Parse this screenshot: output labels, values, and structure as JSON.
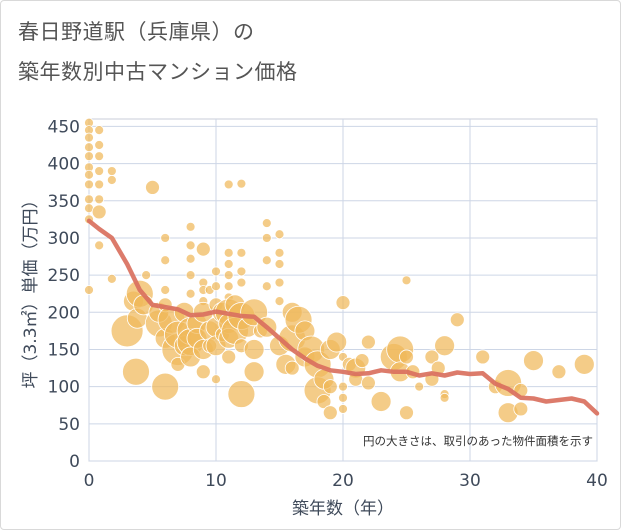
{
  "header": {
    "title_line1": "春日野道駅（兵庫県）の",
    "title_line2": "築年数別中古マンション価格"
  },
  "chart_data": {
    "type": "scatter",
    "xlabel": "築年数（年）",
    "ylabel": "坪（3.3㎡）単価（万円）",
    "xlim": [
      0,
      40
    ],
    "ylim": [
      0,
      460
    ],
    "xticks": [
      0,
      10,
      20,
      30,
      40
    ],
    "yticks": [
      0,
      50,
      100,
      150,
      200,
      250,
      300,
      350,
      400,
      450
    ],
    "grid": true,
    "note": "円の大きさは、取引のあった物件面積を示す",
    "colors": {
      "bubble": "#f0b95a",
      "trend": "#d9705e",
      "grid": "#cdd6e6"
    },
    "bubbles": [
      {
        "x": 0,
        "y": 455,
        "s": 1
      },
      {
        "x": 0,
        "y": 445,
        "s": 1
      },
      {
        "x": 0,
        "y": 435,
        "s": 1
      },
      {
        "x": 0,
        "y": 422,
        "s": 1
      },
      {
        "x": 0,
        "y": 410,
        "s": 1
      },
      {
        "x": 0,
        "y": 395,
        "s": 1
      },
      {
        "x": 0,
        "y": 385,
        "s": 1
      },
      {
        "x": 0,
        "y": 372,
        "s": 1
      },
      {
        "x": 0,
        "y": 352,
        "s": 1
      },
      {
        "x": 0,
        "y": 340,
        "s": 1
      },
      {
        "x": 0,
        "y": 325,
        "s": 1
      },
      {
        "x": 0,
        "y": 230,
        "s": 1
      },
      {
        "x": 0.8,
        "y": 445,
        "s": 1
      },
      {
        "x": 0.8,
        "y": 425,
        "s": 1
      },
      {
        "x": 0.8,
        "y": 410,
        "s": 1
      },
      {
        "x": 0.8,
        "y": 390,
        "s": 1
      },
      {
        "x": 0.8,
        "y": 372,
        "s": 1
      },
      {
        "x": 0.8,
        "y": 352,
        "s": 1
      },
      {
        "x": 0.8,
        "y": 335,
        "s": 2
      },
      {
        "x": 0.8,
        "y": 290,
        "s": 1
      },
      {
        "x": 1.8,
        "y": 390,
        "s": 1
      },
      {
        "x": 1.8,
        "y": 378,
        "s": 1
      },
      {
        "x": 1.8,
        "y": 245,
        "s": 1
      },
      {
        "x": 3,
        "y": 175,
        "s": 5
      },
      {
        "x": 3.5,
        "y": 215,
        "s": 3
      },
      {
        "x": 3.7,
        "y": 120,
        "s": 4
      },
      {
        "x": 3.8,
        "y": 192,
        "s": 3
      },
      {
        "x": 4,
        "y": 225,
        "s": 4
      },
      {
        "x": 4.3,
        "y": 210,
        "s": 3
      },
      {
        "x": 4.5,
        "y": 250,
        "s": 1
      },
      {
        "x": 5,
        "y": 368,
        "s": 2
      },
      {
        "x": 5.5,
        "y": 185,
        "s": 4
      },
      {
        "x": 5.5,
        "y": 200,
        "s": 3
      },
      {
        "x": 6,
        "y": 300,
        "s": 1
      },
      {
        "x": 6,
        "y": 270,
        "s": 1
      },
      {
        "x": 6,
        "y": 230,
        "s": 1
      },
      {
        "x": 6,
        "y": 210,
        "s": 2
      },
      {
        "x": 6,
        "y": 165,
        "s": 3
      },
      {
        "x": 6,
        "y": 100,
        "s": 4
      },
      {
        "x": 6.5,
        "y": 190,
        "s": 4
      },
      {
        "x": 7,
        "y": 150,
        "s": 5
      },
      {
        "x": 7,
        "y": 170,
        "s": 4
      },
      {
        "x": 7,
        "y": 130,
        "s": 2
      },
      {
        "x": 7.5,
        "y": 200,
        "s": 3
      },
      {
        "x": 7.5,
        "y": 155,
        "s": 3
      },
      {
        "x": 8,
        "y": 315,
        "s": 1
      },
      {
        "x": 8,
        "y": 290,
        "s": 1
      },
      {
        "x": 8,
        "y": 272,
        "s": 1
      },
      {
        "x": 8,
        "y": 250,
        "s": 1
      },
      {
        "x": 8,
        "y": 225,
        "s": 1
      },
      {
        "x": 8,
        "y": 175,
        "s": 4
      },
      {
        "x": 8,
        "y": 160,
        "s": 4
      },
      {
        "x": 8,
        "y": 140,
        "s": 3
      },
      {
        "x": 8.5,
        "y": 185,
        "s": 3
      },
      {
        "x": 8.5,
        "y": 165,
        "s": 3
      },
      {
        "x": 9,
        "y": 285,
        "s": 2
      },
      {
        "x": 9,
        "y": 240,
        "s": 1
      },
      {
        "x": 9,
        "y": 230,
        "s": 1
      },
      {
        "x": 9,
        "y": 215,
        "s": 1
      },
      {
        "x": 9,
        "y": 200,
        "s": 3
      },
      {
        "x": 9,
        "y": 150,
        "s": 3
      },
      {
        "x": 9,
        "y": 120,
        "s": 2
      },
      {
        "x": 9.5,
        "y": 230,
        "s": 1
      },
      {
        "x": 9.5,
        "y": 175,
        "s": 3
      },
      {
        "x": 9.5,
        "y": 155,
        "s": 2
      },
      {
        "x": 10,
        "y": 255,
        "s": 1
      },
      {
        "x": 10,
        "y": 235,
        "s": 1
      },
      {
        "x": 10,
        "y": 210,
        "s": 2
      },
      {
        "x": 10,
        "y": 180,
        "s": 3
      },
      {
        "x": 10,
        "y": 155,
        "s": 3
      },
      {
        "x": 10,
        "y": 110,
        "s": 1
      },
      {
        "x": 10.5,
        "y": 200,
        "s": 3
      },
      {
        "x": 10.5,
        "y": 170,
        "s": 2
      },
      {
        "x": 11,
        "y": 372,
        "s": 1
      },
      {
        "x": 11,
        "y": 280,
        "s": 1
      },
      {
        "x": 11,
        "y": 265,
        "s": 1
      },
      {
        "x": 11,
        "y": 250,
        "s": 1
      },
      {
        "x": 11,
        "y": 235,
        "s": 1
      },
      {
        "x": 11,
        "y": 220,
        "s": 1
      },
      {
        "x": 11,
        "y": 200,
        "s": 4
      },
      {
        "x": 11,
        "y": 185,
        "s": 3
      },
      {
        "x": 11,
        "y": 165,
        "s": 3
      },
      {
        "x": 11,
        "y": 140,
        "s": 2
      },
      {
        "x": 11.5,
        "y": 210,
        "s": 3
      },
      {
        "x": 11.5,
        "y": 175,
        "s": 4
      },
      {
        "x": 12,
        "y": 373,
        "s": 1
      },
      {
        "x": 12,
        "y": 280,
        "s": 1
      },
      {
        "x": 12,
        "y": 255,
        "s": 1
      },
      {
        "x": 12,
        "y": 240,
        "s": 1
      },
      {
        "x": 12,
        "y": 195,
        "s": 4
      },
      {
        "x": 12,
        "y": 155,
        "s": 2
      },
      {
        "x": 12,
        "y": 90,
        "s": 4
      },
      {
        "x": 12.5,
        "y": 180,
        "s": 3
      },
      {
        "x": 13,
        "y": 200,
        "s": 4
      },
      {
        "x": 13,
        "y": 150,
        "s": 3
      },
      {
        "x": 13,
        "y": 120,
        "s": 3
      },
      {
        "x": 13.5,
        "y": 175,
        "s": 2
      },
      {
        "x": 14,
        "y": 320,
        "s": 1
      },
      {
        "x": 14,
        "y": 300,
        "s": 1
      },
      {
        "x": 14,
        "y": 270,
        "s": 1
      },
      {
        "x": 14,
        "y": 235,
        "s": 1
      },
      {
        "x": 14,
        "y": 180,
        "s": 3
      },
      {
        "x": 15,
        "y": 305,
        "s": 1
      },
      {
        "x": 15,
        "y": 280,
        "s": 1
      },
      {
        "x": 15,
        "y": 265,
        "s": 1
      },
      {
        "x": 15,
        "y": 240,
        "s": 1
      },
      {
        "x": 15,
        "y": 215,
        "s": 1
      },
      {
        "x": 15,
        "y": 155,
        "s": 3
      },
      {
        "x": 15.5,
        "y": 130,
        "s": 3
      },
      {
        "x": 16,
        "y": 200,
        "s": 3
      },
      {
        "x": 16,
        "y": 165,
        "s": 4
      },
      {
        "x": 16,
        "y": 125,
        "s": 2
      },
      {
        "x": 16.5,
        "y": 190,
        "s": 4
      },
      {
        "x": 17,
        "y": 175,
        "s": 3
      },
      {
        "x": 17,
        "y": 140,
        "s": 3
      },
      {
        "x": 17.5,
        "y": 150,
        "s": 4
      },
      {
        "x": 18,
        "y": 130,
        "s": 4
      },
      {
        "x": 18,
        "y": 95,
        "s": 4
      },
      {
        "x": 18.5,
        "y": 110,
        "s": 3
      },
      {
        "x": 18.5,
        "y": 80,
        "s": 2
      },
      {
        "x": 19,
        "y": 150,
        "s": 3
      },
      {
        "x": 19,
        "y": 100,
        "s": 2
      },
      {
        "x": 19,
        "y": 65,
        "s": 2
      },
      {
        "x": 19.5,
        "y": 160,
        "s": 3
      },
      {
        "x": 20,
        "y": 213,
        "s": 2
      },
      {
        "x": 20,
        "y": 140,
        "s": 1
      },
      {
        "x": 20,
        "y": 100,
        "s": 1
      },
      {
        "x": 20,
        "y": 85,
        "s": 1
      },
      {
        "x": 20,
        "y": 70,
        "s": 1
      },
      {
        "x": 20.5,
        "y": 130,
        "s": 2
      },
      {
        "x": 21,
        "y": 125,
        "s": 3
      },
      {
        "x": 21,
        "y": 110,
        "s": 2
      },
      {
        "x": 21.5,
        "y": 135,
        "s": 2
      },
      {
        "x": 22,
        "y": 160,
        "s": 2
      },
      {
        "x": 22,
        "y": 105,
        "s": 2
      },
      {
        "x": 23,
        "y": 80,
        "s": 3
      },
      {
        "x": 24,
        "y": 140,
        "s": 4
      },
      {
        "x": 24.5,
        "y": 150,
        "s": 4
      },
      {
        "x": 24.5,
        "y": 120,
        "s": 3
      },
      {
        "x": 25,
        "y": 243,
        "s": 1
      },
      {
        "x": 25,
        "y": 140,
        "s": 2
      },
      {
        "x": 25,
        "y": 65,
        "s": 2
      },
      {
        "x": 25.5,
        "y": 120,
        "s": 2
      },
      {
        "x": 26,
        "y": 100,
        "s": 1
      },
      {
        "x": 27,
        "y": 140,
        "s": 2
      },
      {
        "x": 27,
        "y": 110,
        "s": 2
      },
      {
        "x": 27.5,
        "y": 125,
        "s": 2
      },
      {
        "x": 28,
        "y": 155,
        "s": 3
      },
      {
        "x": 28,
        "y": 90,
        "s": 1
      },
      {
        "x": 28,
        "y": 85,
        "s": 1
      },
      {
        "x": 29,
        "y": 190,
        "s": 2
      },
      {
        "x": 31,
        "y": 140,
        "s": 2
      },
      {
        "x": 32,
        "y": 100,
        "s": 2
      },
      {
        "x": 33,
        "y": 105,
        "s": 4
      },
      {
        "x": 33,
        "y": 65,
        "s": 3
      },
      {
        "x": 34,
        "y": 95,
        "s": 2
      },
      {
        "x": 34,
        "y": 70,
        "s": 2
      },
      {
        "x": 35,
        "y": 135,
        "s": 3
      },
      {
        "x": 37,
        "y": 120,
        "s": 2
      },
      {
        "x": 39,
        "y": 130,
        "s": 3
      }
    ],
    "trend": {
      "x": [
        0,
        0.8,
        1.8,
        3,
        4,
        5,
        6,
        7,
        8,
        9,
        10,
        11,
        12,
        13,
        14,
        15,
        16,
        17,
        18,
        19,
        20,
        21,
        22,
        23,
        24,
        25,
        26,
        27,
        28,
        29,
        30,
        31,
        32,
        33,
        34,
        35,
        36,
        37,
        38,
        39,
        40
      ],
      "y": [
        323,
        312,
        300,
        265,
        230,
        210,
        207,
        204,
        196,
        197,
        201,
        198,
        195,
        194,
        180,
        165,
        150,
        138,
        128,
        122,
        120,
        117,
        118,
        122,
        120,
        120,
        115,
        118,
        115,
        119,
        117,
        118,
        104,
        97,
        85,
        84,
        80,
        82,
        84,
        80,
        64
      ]
    }
  }
}
